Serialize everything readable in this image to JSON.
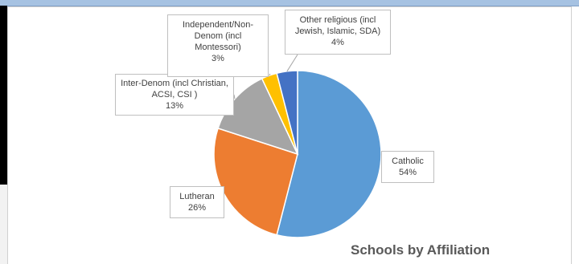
{
  "chart_data": {
    "type": "pie",
    "title": "Schools by Affiliation",
    "slices": [
      {
        "label": "Catholic",
        "value": 54,
        "value_label": "54%",
        "color": "#5b9bd5"
      },
      {
        "label": "Lutheran",
        "value": 26,
        "value_label": "26%",
        "color": "#ed7d31"
      },
      {
        "label": "Inter-Denom (incl Christian, ACSI, CSI )",
        "value": 13,
        "value_label": "13%",
        "color": "#a5a5a5"
      },
      {
        "label": "Independent/Non-Denom (incl Montessori)",
        "value": 3,
        "value_label": "3%",
        "color": "#ffc000"
      },
      {
        "label": "Other religious (incl Jewish, Islamic, SDA)",
        "value": 4,
        "value_label": "4%",
        "color": "#4472c4"
      }
    ]
  }
}
